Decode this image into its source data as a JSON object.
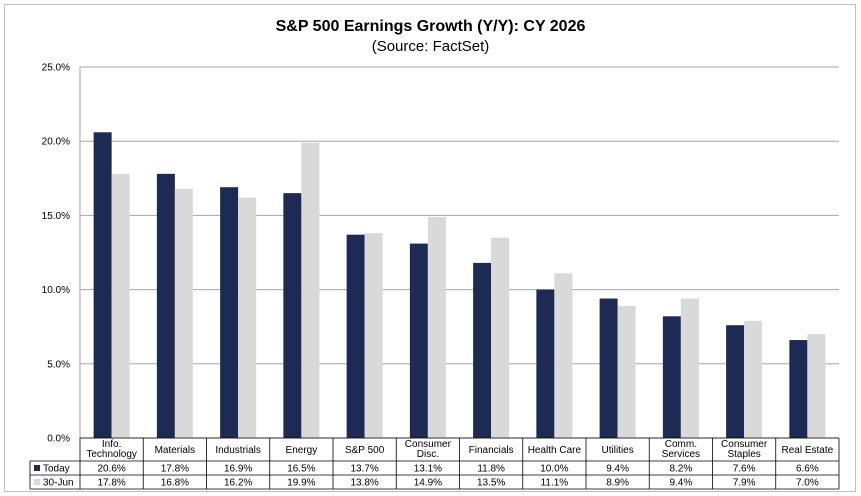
{
  "chart_data": {
    "type": "bar",
    "title": "S&P 500 Earnings Growth (Y/Y): CY 2026",
    "subtitle": "(Source: FactSet)",
    "categories": [
      [
        "Info.",
        "Technology"
      ],
      [
        "Materials"
      ],
      [
        "Industrials"
      ],
      [
        "Energy"
      ],
      [
        "S&P 500"
      ],
      [
        "Consumer",
        "Disc."
      ],
      [
        "Financials"
      ],
      [
        "Health Care"
      ],
      [
        "Utilities"
      ],
      [
        "Comm.",
        "Services"
      ],
      [
        "Consumer",
        "Staples"
      ],
      [
        "Real Estate"
      ]
    ],
    "series": [
      {
        "name": "Today",
        "color": "#1c2a54",
        "values": [
          20.6,
          17.8,
          16.9,
          16.5,
          13.7,
          13.1,
          11.8,
          10.0,
          9.4,
          8.2,
          7.6,
          6.6
        ],
        "labels": [
          "20.6%",
          "17.8%",
          "16.9%",
          "16.5%",
          "13.7%",
          "13.1%",
          "11.8%",
          "10.0%",
          "9.4%",
          "8.2%",
          "7.6%",
          "6.6%"
        ]
      },
      {
        "name": "30-Jun",
        "color": "#d9d9d9",
        "values": [
          17.8,
          16.8,
          16.2,
          19.9,
          13.8,
          14.9,
          13.5,
          11.1,
          8.9,
          9.4,
          7.9,
          7.0
        ],
        "labels": [
          "17.8%",
          "16.8%",
          "16.2%",
          "19.9%",
          "13.8%",
          "14.9%",
          "13.5%",
          "11.1%",
          "8.9%",
          "9.4%",
          "7.9%",
          "7.0%"
        ]
      }
    ],
    "ylim": [
      0,
      25
    ],
    "yticks": [
      0,
      5,
      10,
      15,
      20,
      25
    ],
    "ytick_labels": [
      "0.0%",
      "5.0%",
      "10.0%",
      "15.0%",
      "20.0%",
      "25.0%"
    ],
    "grid": true,
    "legend_placement": "data-table"
  }
}
